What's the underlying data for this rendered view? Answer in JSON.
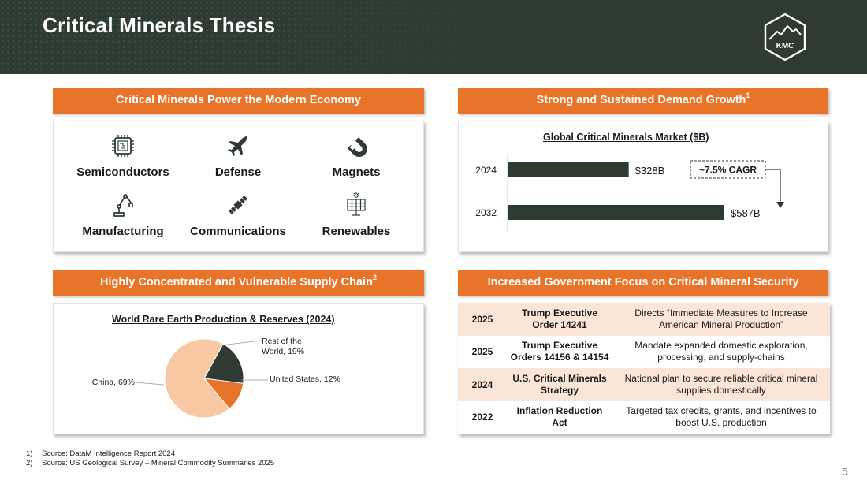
{
  "header": {
    "title": "Critical Minerals Thesis",
    "logo_text": "KMC"
  },
  "sections": {
    "economy": {
      "banner": "Critical Minerals Power the Modern Economy",
      "items": [
        {
          "label": "Semiconductors",
          "icon": "microchip-icon"
        },
        {
          "label": "Defense",
          "icon": "fighter-jet-icon"
        },
        {
          "label": "Magnets",
          "icon": "magnet-icon"
        },
        {
          "label": "Manufacturing",
          "icon": "robotic-arm-icon"
        },
        {
          "label": "Communications",
          "icon": "satellite-icon"
        },
        {
          "label": "Renewables",
          "icon": "solar-panel-icon"
        }
      ]
    },
    "demand": {
      "banner": "Strong and Sustained Demand Growth",
      "banner_sup": "1",
      "cagr_label": "~7.5% CAGR"
    },
    "supply": {
      "banner": "Highly Concentrated and Vulnerable Supply Chain",
      "banner_sup": "2"
    },
    "government": {
      "banner": "Increased Government Focus on Critical Mineral Security",
      "rows": [
        {
          "year": "2025",
          "name": "Trump Executive Order 14241",
          "description": "Directs “Immediate Measures to Increase American Mineral Production”"
        },
        {
          "year": "2025",
          "name": "Trump Executive Orders 14156 & 14154",
          "description": "Mandate expanded domestic exploration, processing, and supply-chains"
        },
        {
          "year": "2024",
          "name": "U.S. Critical Minerals Strategy",
          "description": "National plan to secure reliable critical mineral supplies domestically"
        },
        {
          "year": "2022",
          "name": "Inflation Reduction Act",
          "description": "Targeted tax credits, grants, and incentives to boost U.S. production"
        }
      ]
    }
  },
  "chart_data": [
    {
      "type": "bar",
      "orientation": "horizontal",
      "title": "Global Critical Minerals Market ($B)",
      "categories": [
        "2024",
        "2032"
      ],
      "values": [
        328,
        587
      ],
      "data_labels": [
        "$328B",
        "$587B"
      ],
      "xlim": [
        0,
        600
      ],
      "grid": false,
      "color": "#2d3b33"
    },
    {
      "type": "pie",
      "title": "World Rare Earth Production & Reserves (2024)",
      "slices": [
        {
          "label": "Rest of the World, 19%",
          "value": 19,
          "color": "#2d3b33"
        },
        {
          "label": "United States, 12%",
          "value": 12,
          "color": "#e8742a"
        },
        {
          "label": "China, 69%",
          "value": 69,
          "color": "#f8c8a4"
        }
      ]
    }
  ],
  "footnotes": [
    {
      "num": "1)",
      "text": "Source: DataM Intelligence Report 2024"
    },
    {
      "num": "2)",
      "text": "Source: US Geological Survey – Mineral Commodity Summaries 2025"
    }
  ],
  "page_number": "5"
}
